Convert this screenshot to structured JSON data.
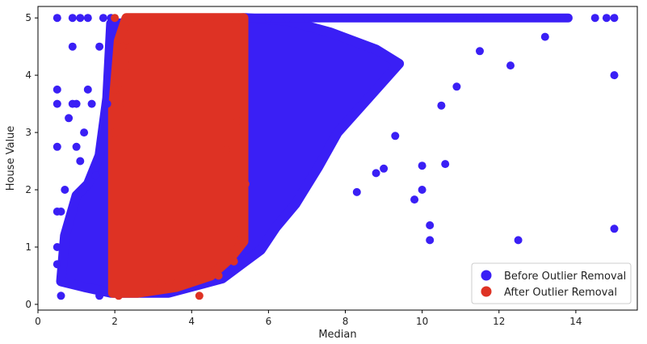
{
  "chart_data": {
    "type": "scatter",
    "title": "",
    "xlabel": "Median",
    "ylabel": "House Value",
    "xlim": [
      0,
      15.6
    ],
    "ylim": [
      -0.1,
      5.2
    ],
    "xticks": [
      0,
      2,
      4,
      6,
      8,
      10,
      12,
      14
    ],
    "yticks": [
      0,
      1,
      2,
      3,
      4,
      5
    ],
    "grid": false,
    "legend_position": "bottom-right",
    "series": [
      {
        "name": "Before Outlier Removal",
        "color": "#3a1ff5",
        "points": [
          [
            0.5,
            5.0
          ],
          [
            0.9,
            5.0
          ],
          [
            1.1,
            5.0
          ],
          [
            1.3,
            5.0
          ],
          [
            1.7,
            5.0
          ],
          [
            1.9,
            5.0
          ],
          [
            6.0,
            5.0
          ],
          [
            6.5,
            5.0
          ],
          [
            7.0,
            5.0
          ],
          [
            7.5,
            5.0
          ],
          [
            8.0,
            5.0
          ],
          [
            8.5,
            5.0
          ],
          [
            9.0,
            5.0
          ],
          [
            9.5,
            5.0
          ],
          [
            10.0,
            5.0
          ],
          [
            10.5,
            5.0
          ],
          [
            11.0,
            5.0
          ],
          [
            11.5,
            5.0
          ],
          [
            12.0,
            5.0
          ],
          [
            12.5,
            5.0
          ],
          [
            13.0,
            5.0
          ],
          [
            13.5,
            5.0
          ],
          [
            13.8,
            5.0
          ],
          [
            14.5,
            5.0
          ],
          [
            14.8,
            5.0
          ],
          [
            15.0,
            5.0
          ],
          [
            15.0,
            4.0
          ],
          [
            15.0,
            1.32
          ],
          [
            12.5,
            1.12
          ],
          [
            10.2,
            1.12
          ],
          [
            10.2,
            1.38
          ],
          [
            12.3,
            4.17
          ],
          [
            13.2,
            4.67
          ],
          [
            10.0,
            2.0
          ],
          [
            9.8,
            1.83
          ],
          [
            10.0,
            2.42
          ],
          [
            10.6,
            2.45
          ],
          [
            11.5,
            4.42
          ],
          [
            10.9,
            3.8
          ],
          [
            10.5,
            3.47
          ],
          [
            9.0,
            2.37
          ],
          [
            8.8,
            2.29
          ],
          [
            9.3,
            2.94
          ],
          [
            8.3,
            1.96
          ],
          [
            0.5,
            3.75
          ],
          [
            0.5,
            3.5
          ],
          [
            0.9,
            4.5
          ],
          [
            1.6,
            4.5
          ],
          [
            0.5,
            2.75
          ],
          [
            0.5,
            1.62
          ],
          [
            0.5,
            1.0
          ],
          [
            0.5,
            0.7
          ],
          [
            0.6,
            0.15
          ],
          [
            1.6,
            0.15
          ],
          [
            1.3,
            3.75
          ],
          [
            0.8,
            3.25
          ],
          [
            1.0,
            2.75
          ],
          [
            1.2,
            3.0
          ],
          [
            0.7,
            2.0
          ],
          [
            0.6,
            1.62
          ],
          [
            1.5,
            2.25
          ],
          [
            1.1,
            2.5
          ],
          [
            1.8,
            3.5
          ],
          [
            1.4,
            3.5
          ],
          [
            1.0,
            3.5
          ],
          [
            0.9,
            3.5
          ]
        ]
      },
      {
        "name": "After Outlier Removal",
        "color": "#de3224",
        "points": [
          [
            2.0,
            5.0
          ],
          [
            2.5,
            5.0
          ],
          [
            3.0,
            5.0
          ],
          [
            3.5,
            5.0
          ],
          [
            4.0,
            5.0
          ],
          [
            4.5,
            5.0
          ],
          [
            5.0,
            5.0
          ],
          [
            5.3,
            5.0
          ],
          [
            2.2,
            4.5
          ],
          [
            2.4,
            4.5
          ],
          [
            2.3,
            4.17
          ],
          [
            2.1,
            3.75
          ],
          [
            2.3,
            3.5
          ],
          [
            2.0,
            3.0
          ],
          [
            2.0,
            3.75
          ],
          [
            2.1,
            0.15
          ],
          [
            4.2,
            0.15
          ],
          [
            3.2,
            0.37
          ],
          [
            3.6,
            0.37
          ],
          [
            3.9,
            0.37
          ],
          [
            4.7,
            0.5
          ],
          [
            5.1,
            0.75
          ],
          [
            5.2,
            1.12
          ],
          [
            5.35,
            1.6
          ],
          [
            5.4,
            2.1
          ],
          [
            4.9,
            2.7
          ],
          [
            5.2,
            3.2
          ]
        ]
      }
    ]
  }
}
